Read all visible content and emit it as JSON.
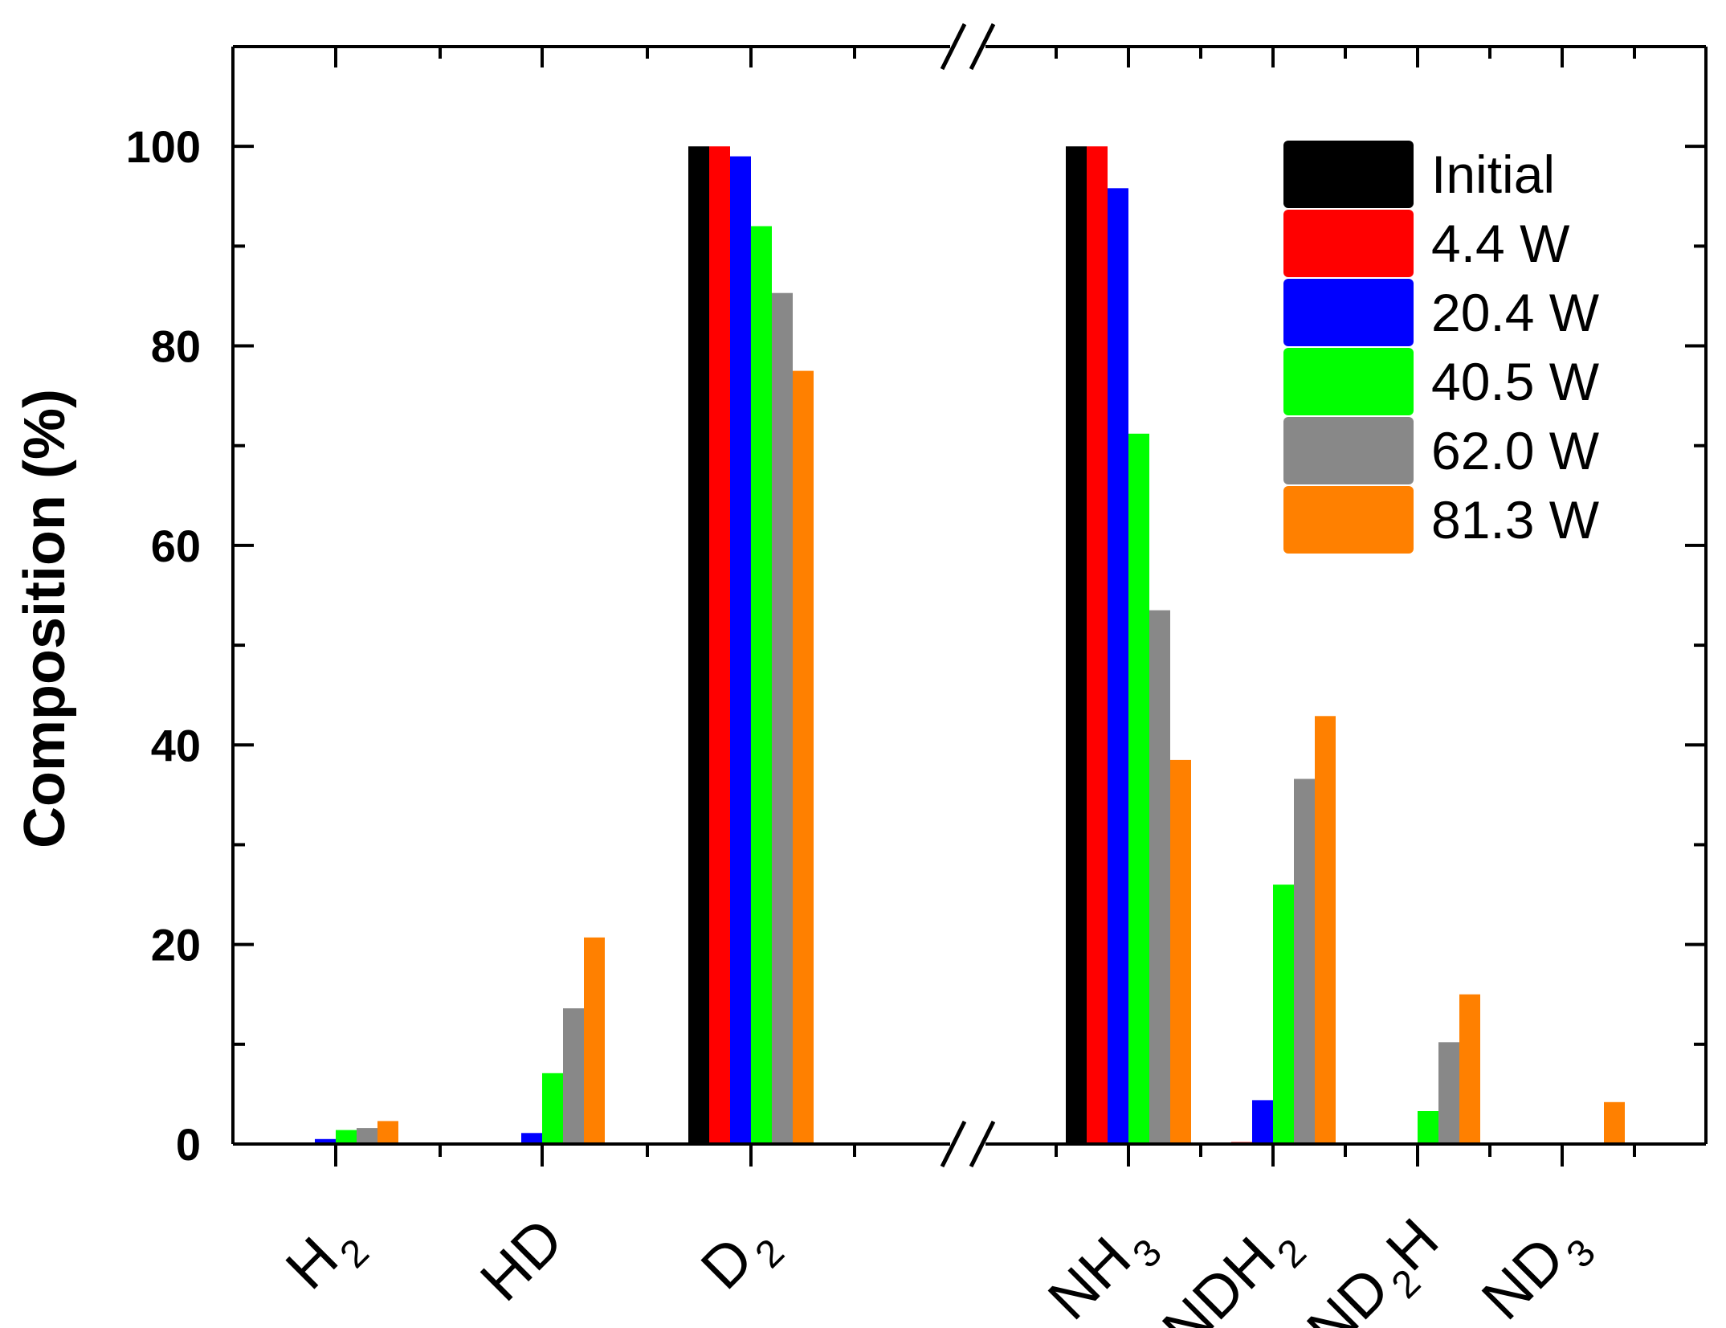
{
  "chart_data": {
    "type": "bar",
    "title": "",
    "xlabel": "",
    "ylabel": "Composition (%)",
    "ylim": [
      0,
      110
    ],
    "yticks": [
      0,
      20,
      40,
      60,
      80,
      100
    ],
    "x_axis_break": "between D2 and NH3",
    "legend": "top-right",
    "grid": false,
    "categories": [
      {
        "base": "H",
        "sub": "2",
        "tail": "",
        "tail_sub": ""
      },
      {
        "base": "HD",
        "sub": "",
        "tail": "",
        "tail_sub": ""
      },
      {
        "base": "D",
        "sub": "2",
        "tail": "",
        "tail_sub": ""
      },
      {
        "base": "NH",
        "sub": "3",
        "tail": "",
        "tail_sub": ""
      },
      {
        "base": "NDH",
        "sub": "2",
        "tail": "",
        "tail_sub": ""
      },
      {
        "base": "ND",
        "sub": "2",
        "tail": "H",
        "tail_sub": ""
      },
      {
        "base": "ND",
        "sub": "3",
        "tail": "",
        "tail_sub": ""
      }
    ],
    "series": [
      {
        "name": "Initial",
        "color": "#000000",
        "values": [
          0,
          0,
          100,
          100,
          0,
          0,
          0
        ]
      },
      {
        "name": "4.4 W",
        "color": "#ff0000",
        "values": [
          0,
          0,
          100,
          100,
          0.2,
          0,
          0
        ]
      },
      {
        "name": "20.4 W",
        "color": "#0000ff",
        "values": [
          0.5,
          1.1,
          99,
          95.8,
          4.4,
          0,
          0
        ]
      },
      {
        "name": "40.5 W",
        "color": "#00ff00",
        "values": [
          1.4,
          7.1,
          92,
          71.2,
          26,
          3.3,
          0
        ]
      },
      {
        "name": "62.0 W",
        "color": "#888888",
        "values": [
          1.6,
          13.6,
          85.3,
          53.5,
          36.6,
          10.2,
          0
        ]
      },
      {
        "name": "81.3 W",
        "color": "#ff8000",
        "values": [
          2.3,
          20.7,
          77.5,
          38.5,
          42.9,
          15,
          4.2
        ]
      }
    ]
  }
}
